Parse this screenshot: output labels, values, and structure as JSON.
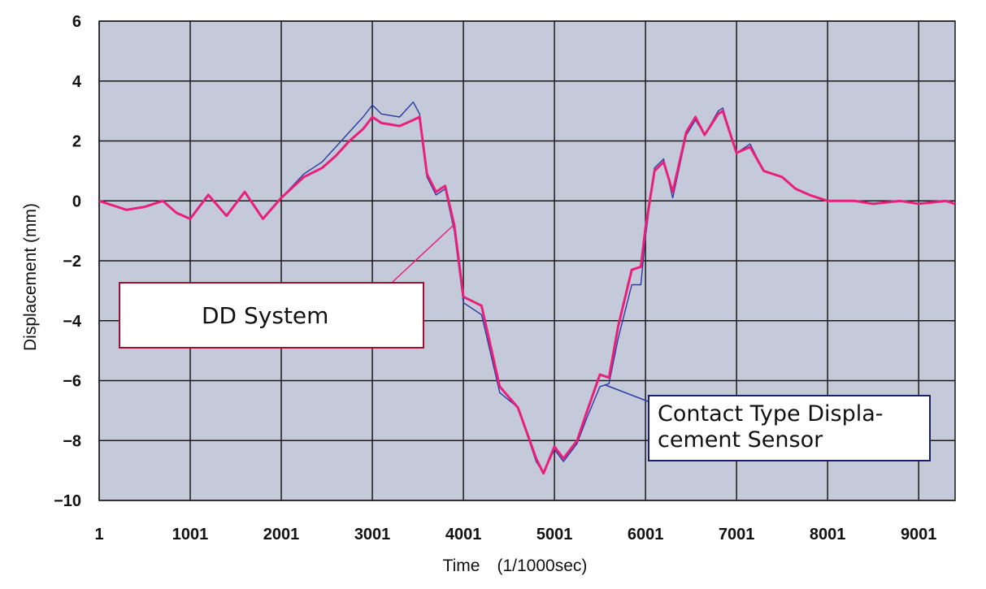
{
  "chart_data": {
    "type": "line",
    "title": "",
    "xlabel": "Time　(1/1000sec)",
    "ylabel": "Displacement (mm)",
    "xlim": [
      1,
      9401
    ],
    "ylim": [
      -10,
      6
    ],
    "x_ticks": [
      1,
      1001,
      2001,
      3001,
      4001,
      5001,
      6001,
      7001,
      8001,
      9001
    ],
    "y_ticks": [
      6,
      4,
      2,
      0,
      -2,
      -4,
      -6,
      -8,
      -10
    ],
    "grid": true,
    "colors": {
      "plot_background": "#c5cadb",
      "grid": "#1a1a1a",
      "dd_system": "#e8207a",
      "contact_sensor": "#2a3aa0"
    },
    "series": [
      {
        "name": "DD System",
        "x": [
          1,
          300,
          500,
          700,
          850,
          1000,
          1200,
          1400,
          1600,
          1800,
          2000,
          2250,
          2450,
          2600,
          2750,
          2900,
          3001,
          3100,
          3300,
          3450,
          3520,
          3600,
          3700,
          3800,
          3900,
          4001,
          4200,
          4400,
          4600,
          4800,
          4880,
          5001,
          5100,
          5250,
          5350,
          5500,
          5600,
          5700,
          5850,
          5950,
          6001,
          6100,
          6200,
          6300,
          6450,
          6550,
          6650,
          6800,
          6850,
          7001,
          7150,
          7300,
          7500,
          7650,
          7800,
          8001,
          8300,
          8500,
          8800,
          9001,
          9300,
          9400
        ],
        "y": [
          0,
          -0.3,
          -0.2,
          0,
          -0.4,
          -0.6,
          0.2,
          -0.5,
          0.3,
          -0.6,
          0.1,
          0.8,
          1.1,
          1.5,
          2.0,
          2.4,
          2.8,
          2.6,
          2.5,
          2.7,
          2.8,
          0.9,
          0.3,
          0.5,
          -0.8,
          -3.2,
          -3.5,
          -6.2,
          -6.9,
          -8.6,
          -9.1,
          -8.2,
          -8.6,
          -8.0,
          -7.1,
          -5.8,
          -5.9,
          -4.2,
          -2.3,
          -2.2,
          -0.9,
          1.0,
          1.3,
          0.3,
          2.3,
          2.8,
          2.2,
          2.9,
          3.0,
          1.6,
          1.8,
          1.0,
          0.8,
          0.4,
          0.2,
          0.0,
          0.0,
          -0.1,
          0.0,
          -0.1,
          0.0,
          -0.1
        ]
      },
      {
        "name": "Contact Type Displacement Sensor",
        "x": [
          1,
          300,
          500,
          700,
          850,
          1000,
          1200,
          1400,
          1600,
          1800,
          2000,
          2250,
          2450,
          2600,
          2750,
          2900,
          3001,
          3100,
          3300,
          3450,
          3520,
          3600,
          3700,
          3800,
          3900,
          4001,
          4200,
          4400,
          4600,
          4800,
          4880,
          5001,
          5100,
          5250,
          5350,
          5500,
          5600,
          5700,
          5850,
          5950,
          6001,
          6100,
          6200,
          6300,
          6450,
          6550,
          6650,
          6800,
          6850,
          7001,
          7150,
          7300,
          7500,
          7650,
          7800,
          8001,
          8300,
          8500,
          8800,
          9001,
          9300,
          9400
        ],
        "y": [
          0,
          -0.3,
          -0.2,
          0,
          -0.4,
          -0.6,
          0.2,
          -0.5,
          0.3,
          -0.6,
          0.1,
          0.9,
          1.3,
          1.8,
          2.3,
          2.8,
          3.2,
          2.9,
          2.8,
          3.3,
          2.9,
          0.8,
          0.2,
          0.4,
          -1.0,
          -3.4,
          -3.8,
          -6.4,
          -6.9,
          -8.7,
          -9.1,
          -8.3,
          -8.7,
          -8.1,
          -7.3,
          -6.2,
          -6.1,
          -4.6,
          -2.8,
          -2.8,
          -1.2,
          1.1,
          1.4,
          0.1,
          2.2,
          2.7,
          2.2,
          3.0,
          3.1,
          1.6,
          1.9,
          1.0,
          0.8,
          0.4,
          0.2,
          0.0,
          0.0,
          -0.1,
          0.0,
          -0.1,
          0.0,
          -0.1
        ]
      }
    ],
    "annotations": [
      {
        "text": "DD System",
        "points_to_series": 0
      },
      {
        "text": "Contact Type Displa-\ncement Sensor",
        "points_to_series": 1
      }
    ]
  }
}
